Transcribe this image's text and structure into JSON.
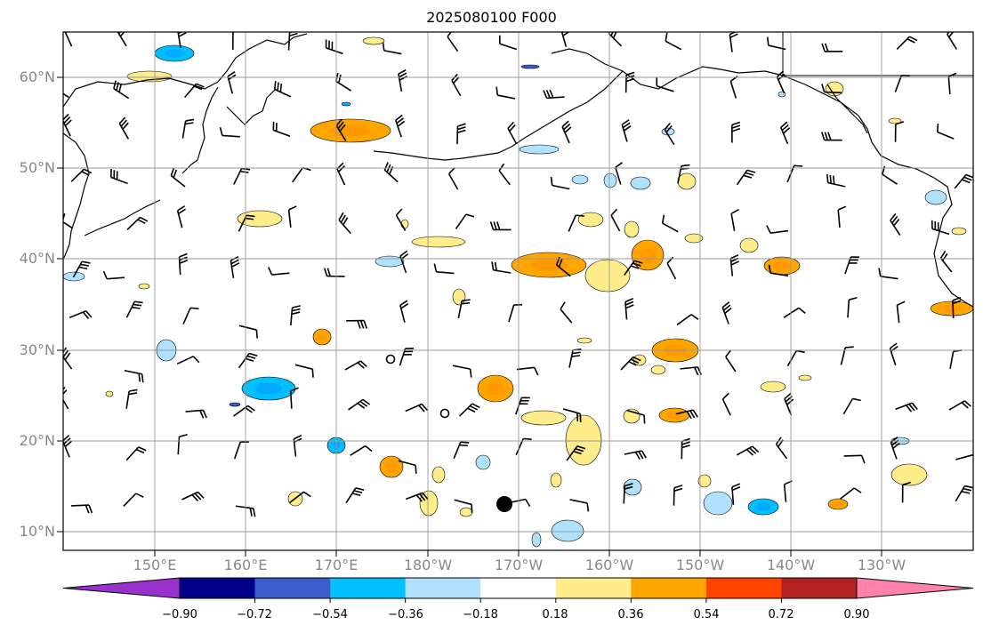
{
  "title": "2025080100 F000",
  "map": {
    "lat_labels": [
      "60°N",
      "50°N",
      "40°N",
      "30°N",
      "20°N",
      "10°N"
    ],
    "lon_labels": [
      "150°E",
      "160°E",
      "170°E",
      "180°W",
      "170°W",
      "160°W",
      "150°W",
      "140°W",
      "130°W"
    ],
    "grid": true,
    "lon_range": [
      140,
      240
    ],
    "lat_range": [
      8,
      65
    ]
  },
  "colorbar": {
    "ticks": [
      "−0.90",
      "−0.72",
      "−0.54",
      "−0.36",
      "−0.18",
      "0.18",
      "0.36",
      "0.54",
      "0.72",
      "0.90"
    ],
    "colors": [
      "#9932cc",
      "#00008b",
      "#3a5fcd",
      "#00bfff",
      "#b0e2ff",
      "#ffffff",
      "#ffec8b",
      "#ffa500",
      "#ff4500",
      "#b22222",
      "#ff82ab"
    ]
  },
  "fill_colors": {
    "pos1": "#ffec8b",
    "pos2": "#ffa500",
    "neg1": "#b0e2ff",
    "neg2": "#00bfff",
    "neg3": "#3a5fcd"
  }
}
